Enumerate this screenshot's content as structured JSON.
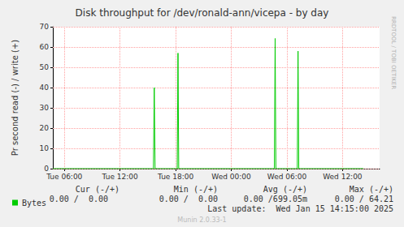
{
  "chart_data": {
    "type": "line",
    "title": "Disk throughput for /dev/ronald-ann/vicepa - by day",
    "y_label": "Pr second read (-) / write (+)",
    "xlim": [
      4.75,
      40.0
    ],
    "xticks": [
      {
        "value": 6,
        "label": "Tue 06:00"
      },
      {
        "value": 12,
        "label": "Tue 12:00"
      },
      {
        "value": 18,
        "label": "Tue 18:00"
      },
      {
        "value": 24,
        "label": "Wed 00:00"
      },
      {
        "value": 30,
        "label": "Wed 06:00"
      },
      {
        "value": 36,
        "label": "Wed 12:00"
      }
    ],
    "ylim": [
      0,
      70
    ],
    "yticks": [
      0,
      10,
      20,
      30,
      40,
      50,
      60,
      70
    ],
    "grid": true,
    "series": [
      {
        "name": "Bytes",
        "color": "#00cc00",
        "x": [
          4.75,
          15.6,
          15.69,
          15.78,
          18.17,
          18.25,
          18.33,
          28.65,
          28.73,
          28.81,
          31.12,
          31.2,
          31.28,
          38.25
        ],
        "values": [
          0,
          0,
          40,
          0,
          0,
          57,
          0,
          0,
          64.21,
          0,
          0,
          58,
          0,
          0
        ]
      }
    ],
    "summary": {
      "headers": [
        "Cur (-/+)",
        "Min (-/+)",
        "Avg (-/+)",
        "Max (-/+)"
      ],
      "cells": [
        "0.00 /  0.00",
        "0.00 /  0.00",
        "0.00 /699.05m",
        "0.00 / 64.21"
      ]
    },
    "last_update": "Last update:  Wed Jan 15 14:15:00 2025",
    "watermark": "RRDTOOL / TOBI OETIKER",
    "footer": "Munin 2.0.33-1"
  }
}
